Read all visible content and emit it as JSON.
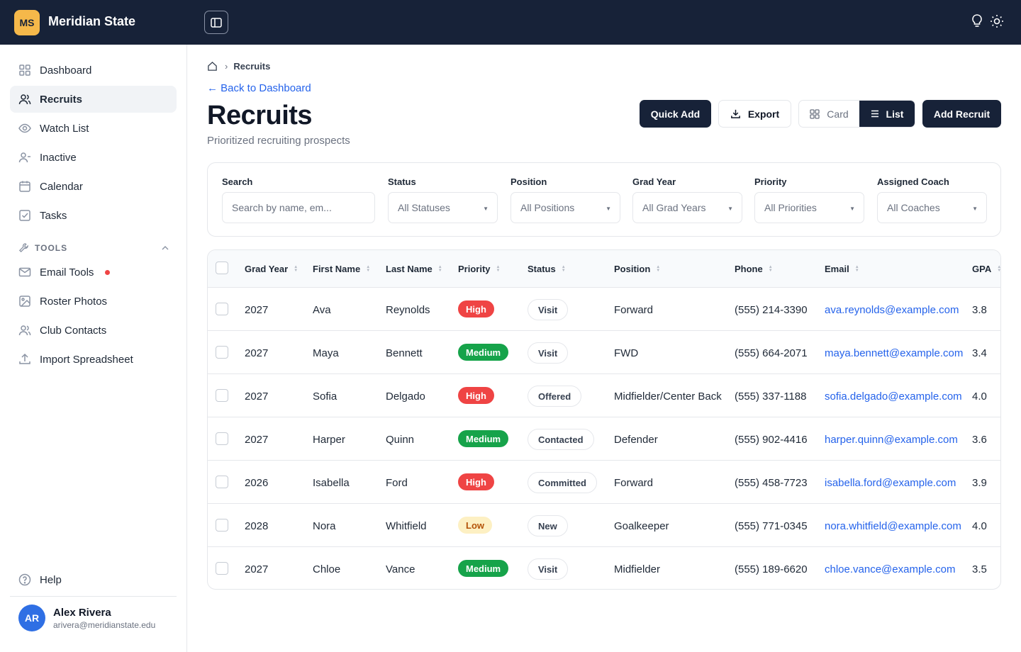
{
  "app": {
    "logo_initials": "MS",
    "name": "Meridian State"
  },
  "sidebar": {
    "items": [
      {
        "label": "Dashboard",
        "icon": "grid-icon"
      },
      {
        "label": "Recruits",
        "icon": "users-icon"
      },
      {
        "label": "Watch List",
        "icon": "eye-icon"
      },
      {
        "label": "Inactive",
        "icon": "user-minus-icon"
      },
      {
        "label": "Calendar",
        "icon": "calendar-icon"
      },
      {
        "label": "Tasks",
        "icon": "check-square-icon"
      }
    ],
    "tools_label": "TOOLS",
    "tools": [
      {
        "label": "Email Tools",
        "icon": "mail-icon"
      },
      {
        "label": "Roster Photos",
        "icon": "image-icon"
      },
      {
        "label": "Club Contacts",
        "icon": "contacts-icon"
      },
      {
        "label": "Import Spreadsheet",
        "icon": "upload-icon"
      }
    ],
    "help_label": "Help",
    "user": {
      "initials": "AR",
      "name": "Alex Rivera",
      "email": "arivera@meridianstate.edu"
    }
  },
  "breadcrumb": {
    "current": "Recruits"
  },
  "back_link": "← Back to Dashboard",
  "page": {
    "title": "Recruits",
    "subtitle": "Prioritized recruiting prospects"
  },
  "actions": {
    "quick_add": "Quick Add",
    "export": "Export",
    "card": "Card",
    "list": "List",
    "add_recruit": "Add Recruit"
  },
  "filters": {
    "search_label": "Search",
    "search_placeholder": "Search by name, em...",
    "status_label": "Status",
    "status_value": "All Statuses",
    "position_label": "Position",
    "position_value": "All Positions",
    "grad_year_label": "Grad Year",
    "grad_year_value": "All Grad Years",
    "priority_label": "Priority",
    "priority_value": "All Priorities",
    "coach_label": "Assigned Coach",
    "coach_value": "All Coaches"
  },
  "table": {
    "columns": [
      "Grad Year",
      "First Name",
      "Last Name",
      "Priority",
      "Status",
      "Position",
      "Phone",
      "Email",
      "GPA"
    ],
    "rows": [
      {
        "grad_year": "2027",
        "first": "Ava",
        "last": "Reynolds",
        "priority": "High",
        "status": "Visit",
        "position": "Forward",
        "phone": "(555) 214-3390",
        "email": "ava.reynolds@example.com",
        "gpa": "3.8"
      },
      {
        "grad_year": "2027",
        "first": "Maya",
        "last": "Bennett",
        "priority": "Medium",
        "status": "Visit",
        "position": "FWD",
        "phone": "(555) 664-2071",
        "email": "maya.bennett@example.com",
        "gpa": "3.4"
      },
      {
        "grad_year": "2027",
        "first": "Sofia",
        "last": "Delgado",
        "priority": "High",
        "status": "Offered",
        "position": "Midfielder/Center Back",
        "phone": "(555) 337-1188",
        "email": "sofia.delgado@example.com",
        "gpa": "4.0"
      },
      {
        "grad_year": "2027",
        "first": "Harper",
        "last": "Quinn",
        "priority": "Medium",
        "status": "Contacted",
        "position": "Defender",
        "phone": "(555) 902-4416",
        "email": "harper.quinn@example.com",
        "gpa": "3.6"
      },
      {
        "grad_year": "2026",
        "first": "Isabella",
        "last": "Ford",
        "priority": "High",
        "status": "Committed",
        "position": "Forward",
        "phone": "(555) 458-7723",
        "email": "isabella.ford@example.com",
        "gpa": "3.9"
      },
      {
        "grad_year": "2028",
        "first": "Nora",
        "last": "Whitfield",
        "priority": "Low",
        "status": "New",
        "position": "Goalkeeper",
        "phone": "(555) 771-0345",
        "email": "nora.whitfield@example.com",
        "gpa": "4.0"
      },
      {
        "grad_year": "2027",
        "first": "Chloe",
        "last": "Vance",
        "priority": "Medium",
        "status": "Visit",
        "position": "Midfielder",
        "phone": "(555) 189-6620",
        "email": "chloe.vance@example.com",
        "gpa": "3.5"
      }
    ]
  },
  "colors": {
    "navy": "#172238",
    "accent": "#f5b84a",
    "link": "#2563eb",
    "high": "#ef4444",
    "medium": "#16a34a",
    "low_bg": "#fdf0c3"
  }
}
